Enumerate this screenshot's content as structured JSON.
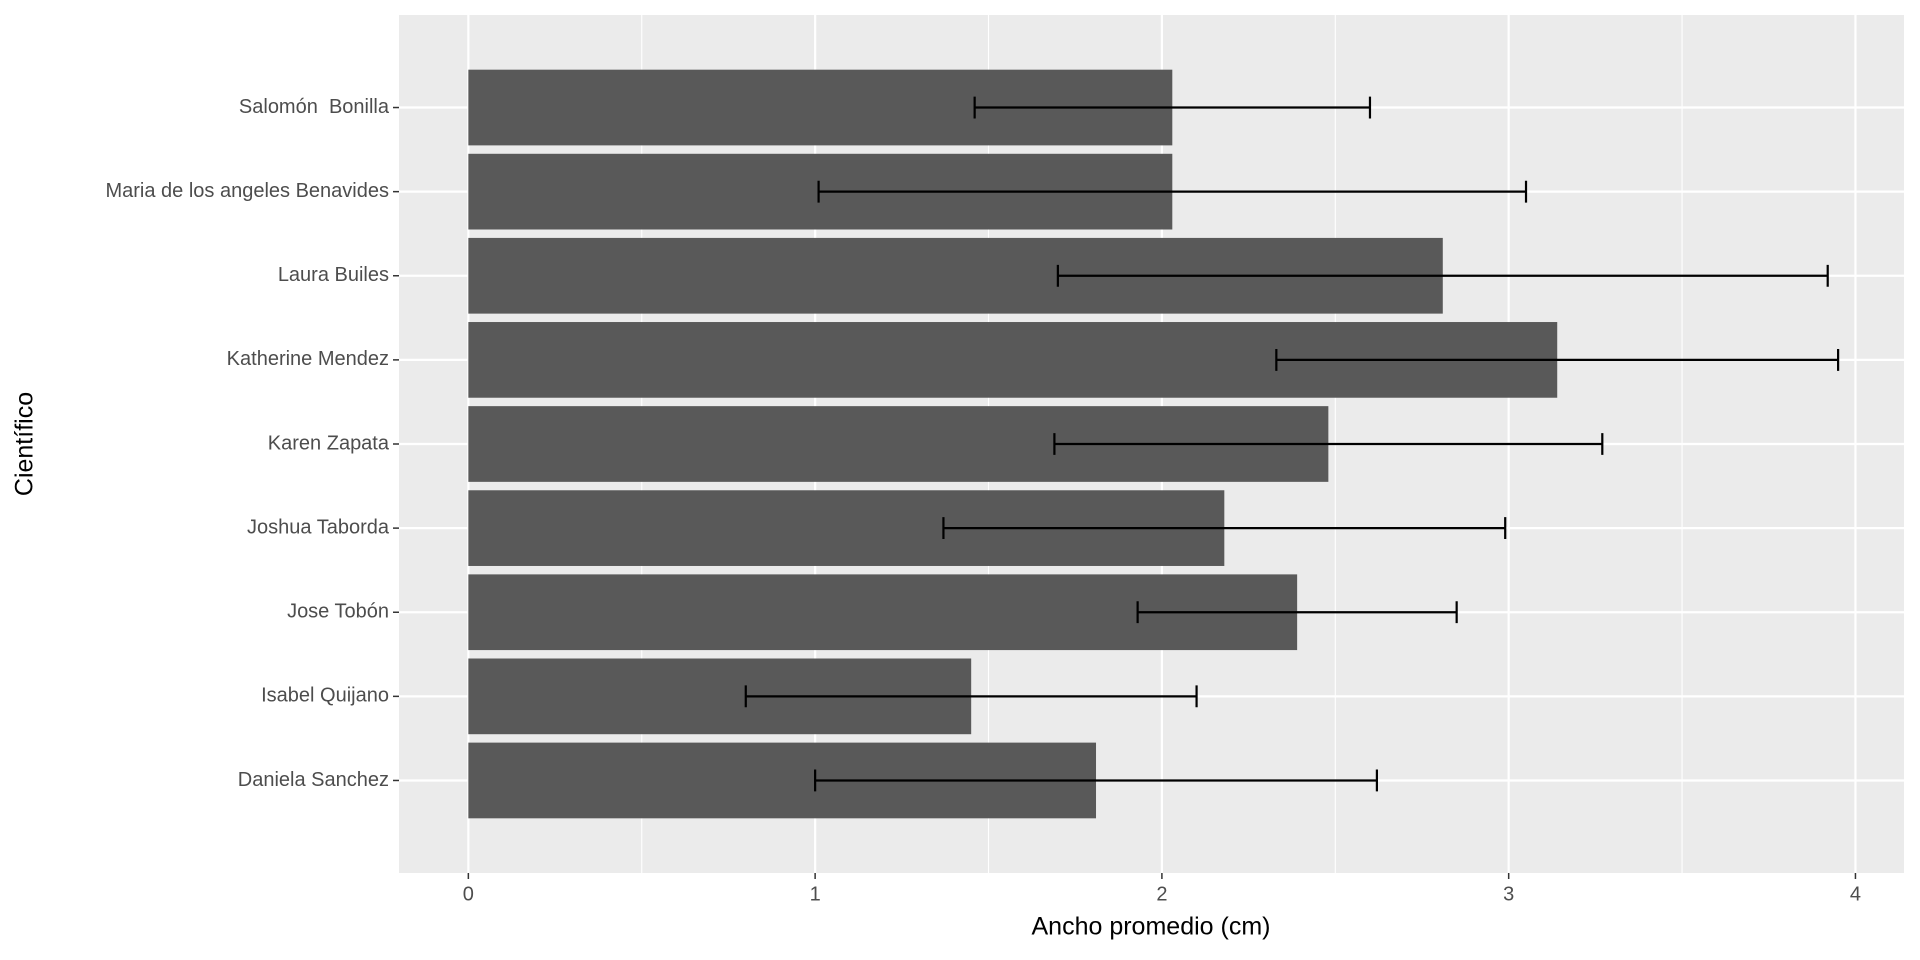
{
  "chart_data": {
    "type": "bar",
    "orientation": "horizontal",
    "x_label": "Ancho promedio (cm)",
    "y_label": "Científico",
    "categories": [
      "Daniela Sanchez",
      "Isabel Quijano",
      "Jose Tobón",
      "Joshua Taborda",
      "Karen Zapata",
      "Katherine Mendez",
      "Laura Builes",
      "Maria de los angeles Benavides",
      "Salomón  Bonilla"
    ],
    "values": [
      1.81,
      1.45,
      2.39,
      2.18,
      2.48,
      3.14,
      2.81,
      2.03,
      2.03
    ],
    "errors": [
      0.81,
      0.65,
      0.46,
      0.81,
      0.79,
      0.81,
      1.11,
      1.02,
      0.57
    ],
    "color": "#595959",
    "error_color": "#000000",
    "xlim": [
      -0.2,
      4.14
    ],
    "xticks": [
      0,
      1,
      2,
      3,
      4
    ],
    "grid": true
  }
}
